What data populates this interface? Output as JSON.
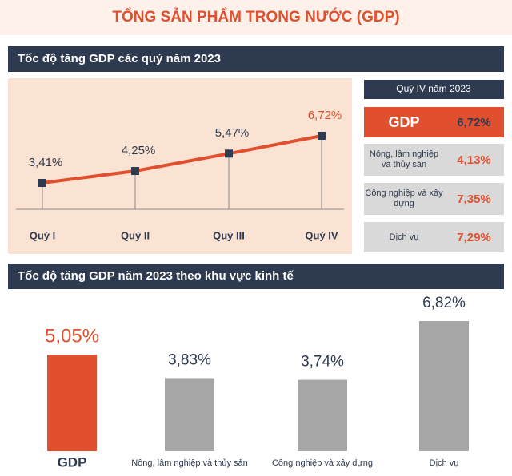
{
  "title": "TỔNG SẢN PHẨM TRONG NƯỚC (GDP)",
  "chart_data": [
    {
      "type": "line",
      "title": "Tốc độ tăng GDP các quý năm 2023",
      "categories": [
        "Quý I",
        "Quý II",
        "Quý III",
        "Quý IV"
      ],
      "values": [
        3.41,
        4.25,
        5.47,
        6.72
      ],
      "value_labels": [
        "3,41%",
        "4,25%",
        "5,47%",
        "6,72%"
      ],
      "label_colors": [
        "#2e3a4f",
        "#2e3a4f",
        "#2e3a4f",
        "#e0502e"
      ],
      "color": "#e0502e",
      "marker_color": "#2e3a4f"
    },
    {
      "type": "bar",
      "title": "Tốc độ tăng GDP năm 2023 theo khu vực kinh tế",
      "categories": [
        "GDP",
        "Nông, lâm nghiệp và thủy sản",
        "Công nghiệp và xây dựng",
        "Dịch vụ"
      ],
      "values": [
        5.05,
        3.83,
        3.74,
        6.82
      ],
      "value_labels": [
        "5,05%",
        "3,83%",
        "3,74%",
        "6,82%"
      ],
      "colors": [
        "#e0502e",
        "#a6a6a6",
        "#a6a6a6",
        "#a6a6a6"
      ]
    }
  ],
  "side_panel": {
    "title": "Quý IV năm 2023",
    "rows": [
      {
        "label": "GDP",
        "value": "6,72%"
      },
      {
        "label": "Nông, lâm nghiệp và thủy sản",
        "value": "4,13%"
      },
      {
        "label": "Công nghiệp và xây dựng",
        "value": "7,35%"
      },
      {
        "label": "Dịch vụ",
        "value": "7,29%"
      }
    ]
  }
}
